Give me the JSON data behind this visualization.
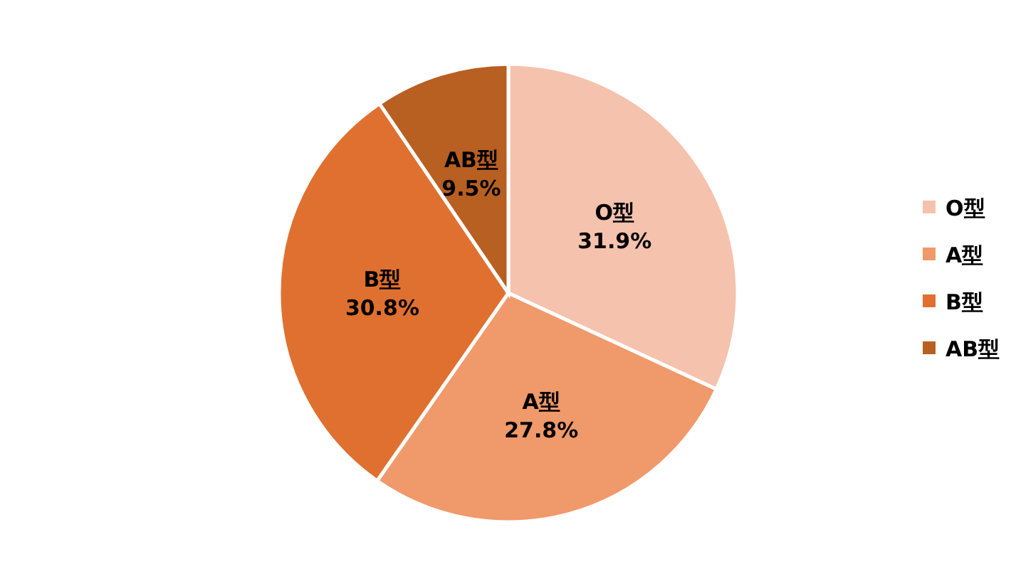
{
  "chart_data": {
    "type": "pie",
    "categories": [
      "O型",
      "A型",
      "B型",
      "AB型"
    ],
    "values": [
      31.9,
      27.8,
      30.8,
      9.5
    ],
    "colors": [
      "#f5c2ad",
      "#f0996b",
      "#e07030",
      "#b85f22"
    ],
    "value_labels": [
      "31.9%",
      "27.8%",
      "30.8%",
      "9.5%"
    ],
    "legend": "right"
  }
}
